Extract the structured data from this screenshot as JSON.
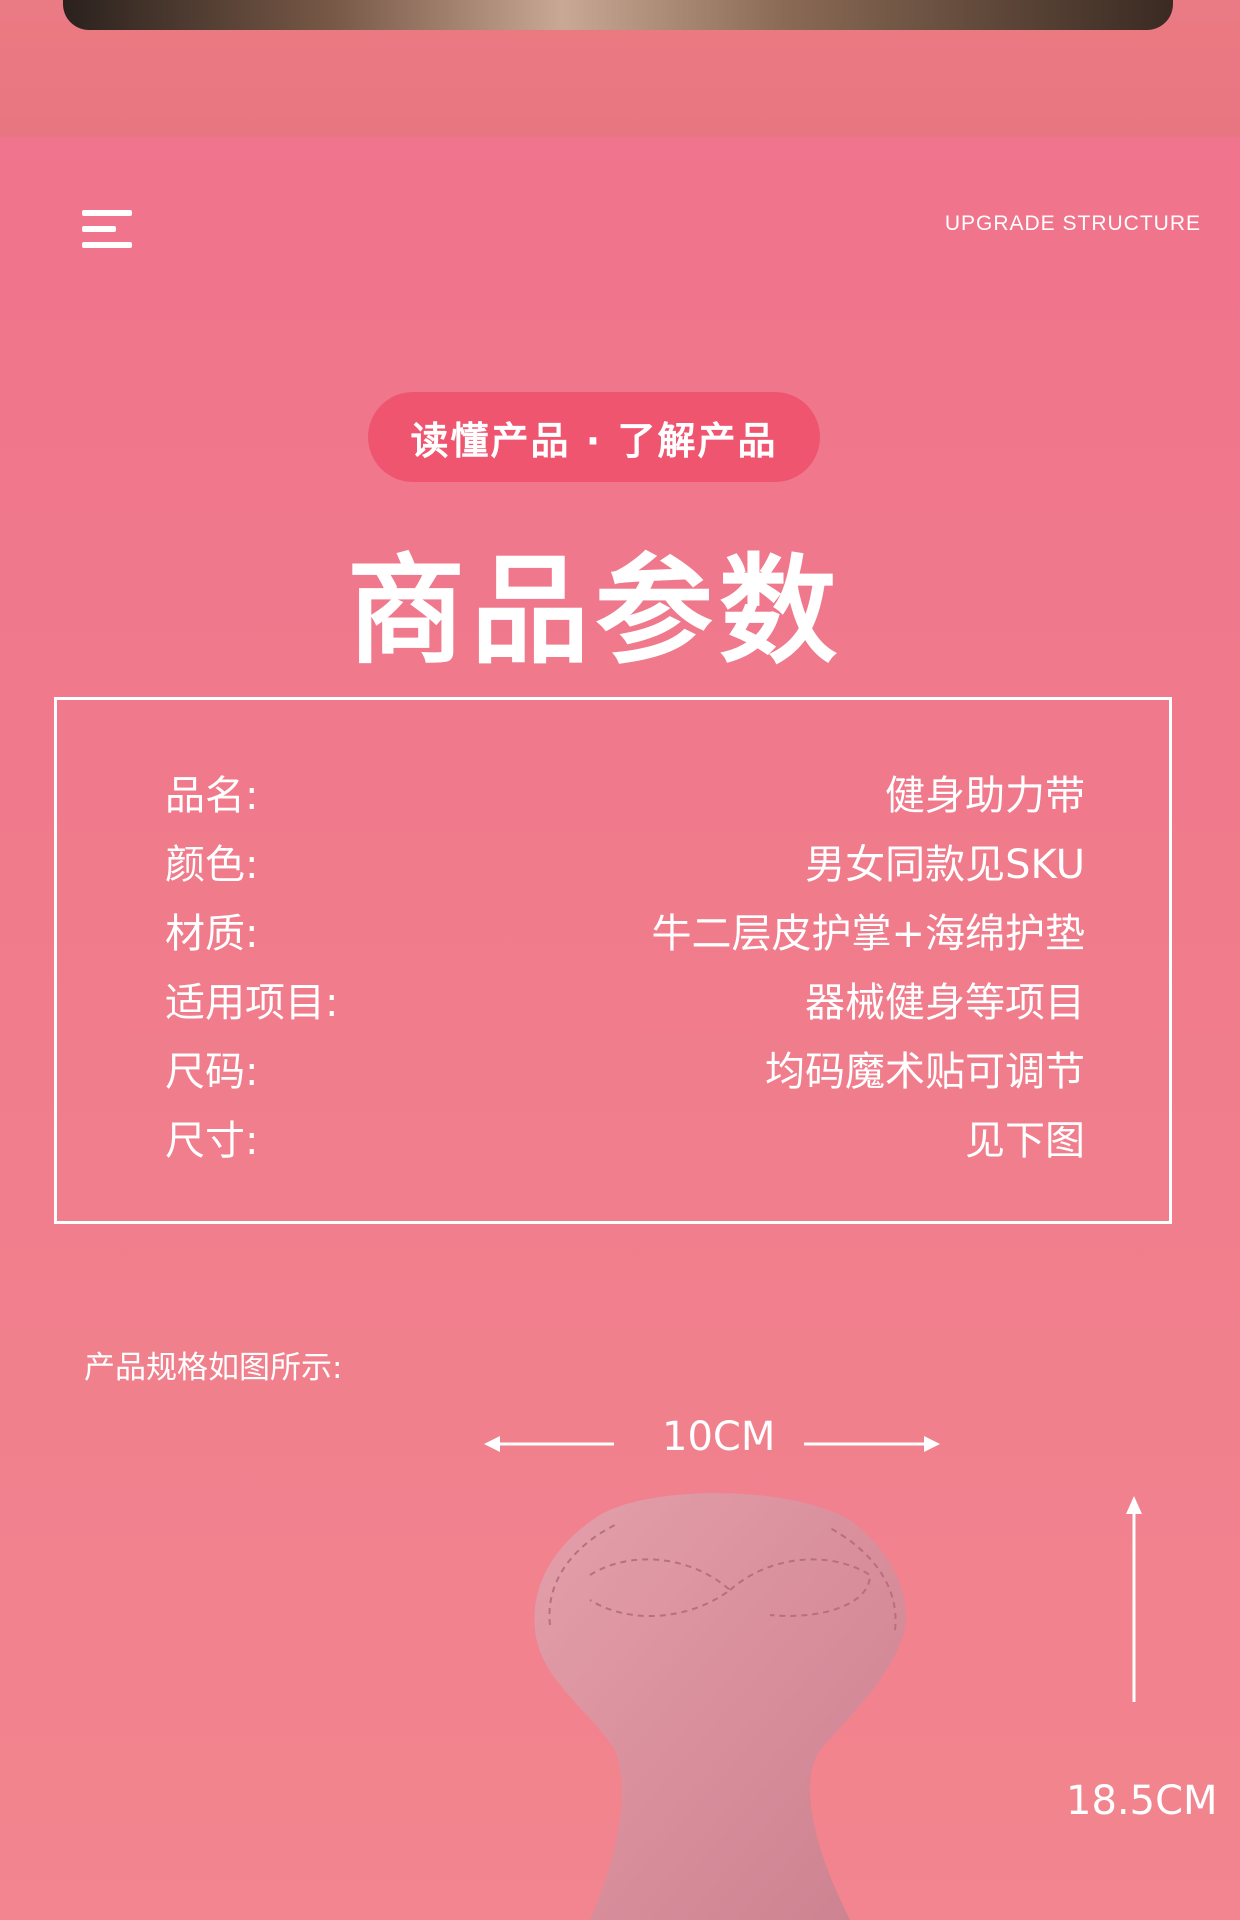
{
  "header": {
    "right_label": "UPGRADE STRUCTURE",
    "menu_icon": "menu-icon"
  },
  "badge": {
    "text": "读懂产品 · 了解产品"
  },
  "title": "商品参数",
  "specs": [
    {
      "label": "品名:",
      "value": "健身助力带"
    },
    {
      "label": "颜色:",
      "value": "男女同款见SKU"
    },
    {
      "label": "材质:",
      "value": "牛二层皮护掌+海绵护垫"
    },
    {
      "label": "适用项目:",
      "value": "器械健身等项目"
    },
    {
      "label": "尺码:",
      "value": "均码魔术贴可调节"
    },
    {
      "label": "尺寸:",
      "value": "见下图"
    }
  ],
  "size_section": {
    "caption": "产品规格如图所示:",
    "width_label": "10CM",
    "height_label": "18.5CM"
  },
  "colors": {
    "background": "#f0778c",
    "badge": "#f05570",
    "product": "#d98a97"
  }
}
